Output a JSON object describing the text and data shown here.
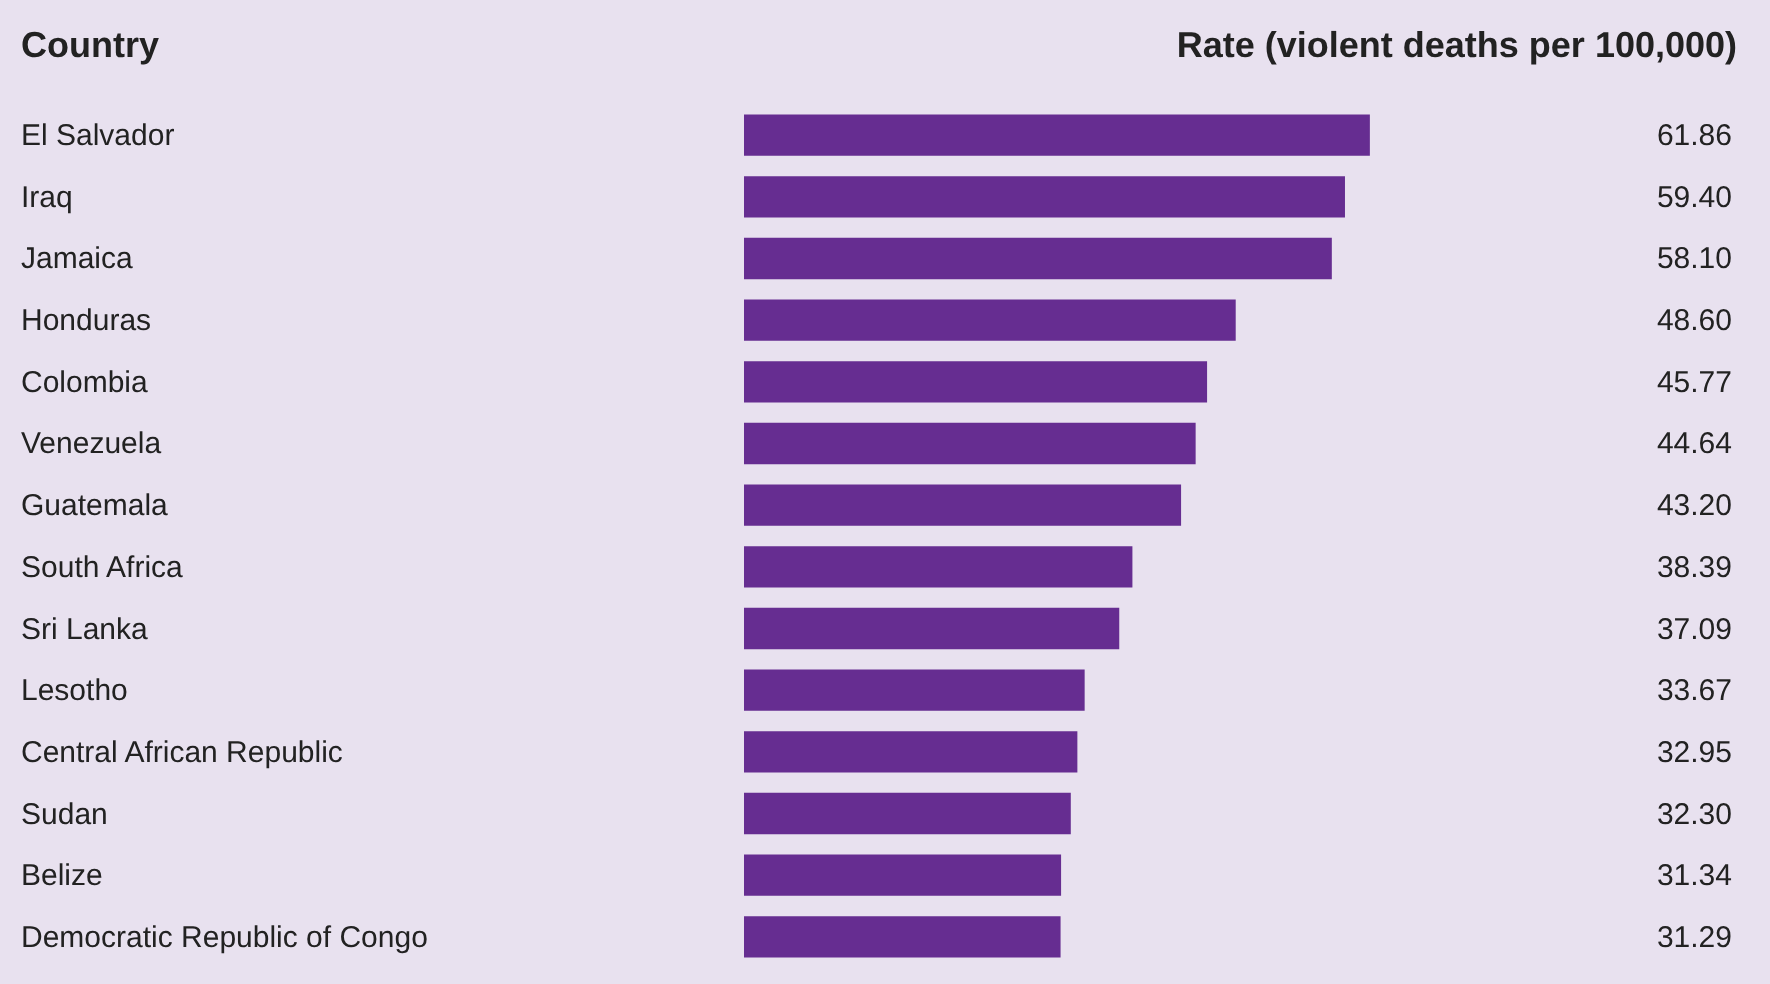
{
  "chart_data": {
    "type": "bar",
    "orientation": "horizontal",
    "ylabel": "Country",
    "xlabel": "Rate (violent deaths per 100,000)",
    "categories": [
      "El Salvador",
      "Iraq",
      "Jamaica",
      "Honduras",
      "Colombia",
      "Venezuela",
      "Guatemala",
      "South Africa",
      "Sri Lanka",
      "Lesotho",
      "Central African Republic",
      "Sudan",
      "Belize",
      "Democratic Republic of Congo"
    ],
    "values": [
      61.86,
      59.4,
      58.1,
      48.6,
      45.77,
      44.64,
      43.2,
      38.39,
      37.09,
      33.67,
      32.95,
      32.3,
      31.34,
      31.29
    ],
    "value_labels": [
      "61.86",
      "59.40",
      "58.10",
      "48.60",
      "45.77",
      "44.64",
      "43.20",
      "38.39",
      "37.09",
      "33.67",
      "32.95",
      "32.30",
      "31.34",
      "31.29"
    ],
    "color": "#662d91",
    "data_labels": true,
    "tick_labels": "y",
    "grid": false
  }
}
